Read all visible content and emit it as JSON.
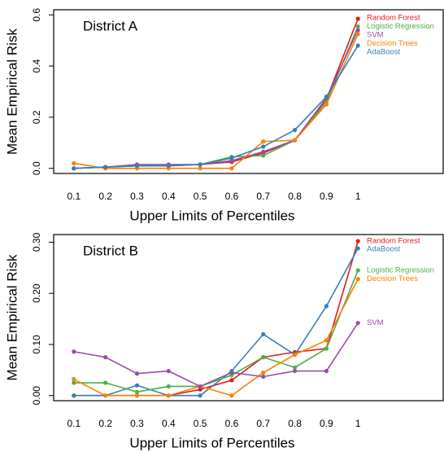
{
  "chart_data": [
    {
      "type": "line",
      "annotation": "District A",
      "xlabel": "Upper Limits of Percentiles",
      "ylabel": "Mean Empirical Risk",
      "x": [
        0.1,
        0.2,
        0.3,
        0.4,
        0.5,
        0.6,
        0.7,
        0.8,
        0.9,
        1
      ],
      "xlim": [
        0.036,
        1.27
      ],
      "xticks": [
        0.1,
        0.2,
        0.3,
        0.4,
        0.5,
        0.6,
        0.7,
        0.8,
        0.9,
        1
      ],
      "ylim": [
        -0.02,
        0.62
      ],
      "yticks": [
        {
          "value": 0,
          "label": "0.0"
        },
        0.2,
        0.4,
        0.6
      ],
      "legend": "top right",
      "series": [
        {
          "name": "Random Forest",
          "color": "#e41a1c",
          "values": [
            0.0,
            0.005,
            0.01,
            0.01,
            0.015,
            0.025,
            0.06,
            0.11,
            0.27,
            0.585
          ]
        },
        {
          "name": "Logistic Regression",
          "color": "#4daf4a",
          "values": [
            0.0,
            0.005,
            0.01,
            0.01,
            0.015,
            0.045,
            0.05,
            0.11,
            0.26,
            0.555
          ]
        },
        {
          "name": "SVM",
          "color": "#984ea3",
          "values": [
            0.0,
            0.005,
            0.015,
            0.015,
            0.015,
            0.03,
            0.065,
            0.11,
            0.275,
            0.54
          ]
        },
        {
          "name": "Decision Trees",
          "color": "#ff7f00",
          "values": [
            0.02,
            0.0,
            0.0,
            0.0,
            0.0,
            0.0,
            0.105,
            0.11,
            0.25,
            0.525
          ]
        },
        {
          "name": "AdaBoost",
          "color": "#377eb8",
          "values": [
            0.0,
            0.005,
            0.01,
            0.01,
            0.015,
            0.04,
            0.085,
            0.15,
            0.28,
            0.48
          ]
        }
      ]
    },
    {
      "type": "line",
      "annotation": "District B",
      "xlabel": "Upper Limits of Percentiles",
      "ylabel": "Mean Empirical Risk",
      "x": [
        0.1,
        0.2,
        0.3,
        0.4,
        0.5,
        0.6,
        0.7,
        0.8,
        0.9,
        1
      ],
      "xlim": [
        0.036,
        1.27
      ],
      "xticks": [
        0.1,
        0.2,
        0.3,
        0.4,
        0.5,
        0.6,
        0.7,
        0.8,
        0.9,
        1
      ],
      "ylim": [
        -0.01,
        0.315
      ],
      "yticks": [
        {
          "value": 0,
          "label": "0.00"
        },
        {
          "value": 0.1,
          "label": "0.10"
        },
        {
          "value": 0.2,
          "label": "0.20"
        },
        {
          "value": 0.3,
          "label": "0.30"
        }
      ],
      "legend": "right",
      "series": [
        {
          "name": "Random Forest",
          "color": "#e41a1c",
          "values": [
            0.0,
            0.0,
            0.0,
            0.0,
            0.012,
            0.03,
            0.075,
            0.085,
            0.092,
            0.302
          ]
        },
        {
          "name": "AdaBoost",
          "color": "#377eb8",
          "values": [
            0.0,
            0.0,
            0.02,
            0.0,
            0.0,
            0.048,
            0.12,
            0.08,
            0.175,
            0.288
          ]
        },
        {
          "name": "Logistic Regression",
          "color": "#4daf4a",
          "values": [
            0.025,
            0.025,
            0.007,
            0.018,
            0.018,
            0.04,
            0.075,
            0.055,
            0.092,
            0.245
          ]
        },
        {
          "name": "Decision Trees",
          "color": "#ff7f00",
          "values": [
            0.032,
            0.0,
            0.0,
            0.0,
            0.018,
            0.0,
            0.045,
            0.08,
            0.108,
            0.228
          ]
        },
        {
          "name": "SVM",
          "color": "#984ea3",
          "values": [
            0.086,
            0.075,
            0.043,
            0.048,
            0.018,
            0.045,
            0.037,
            0.048,
            0.048,
            0.142
          ]
        }
      ]
    }
  ]
}
